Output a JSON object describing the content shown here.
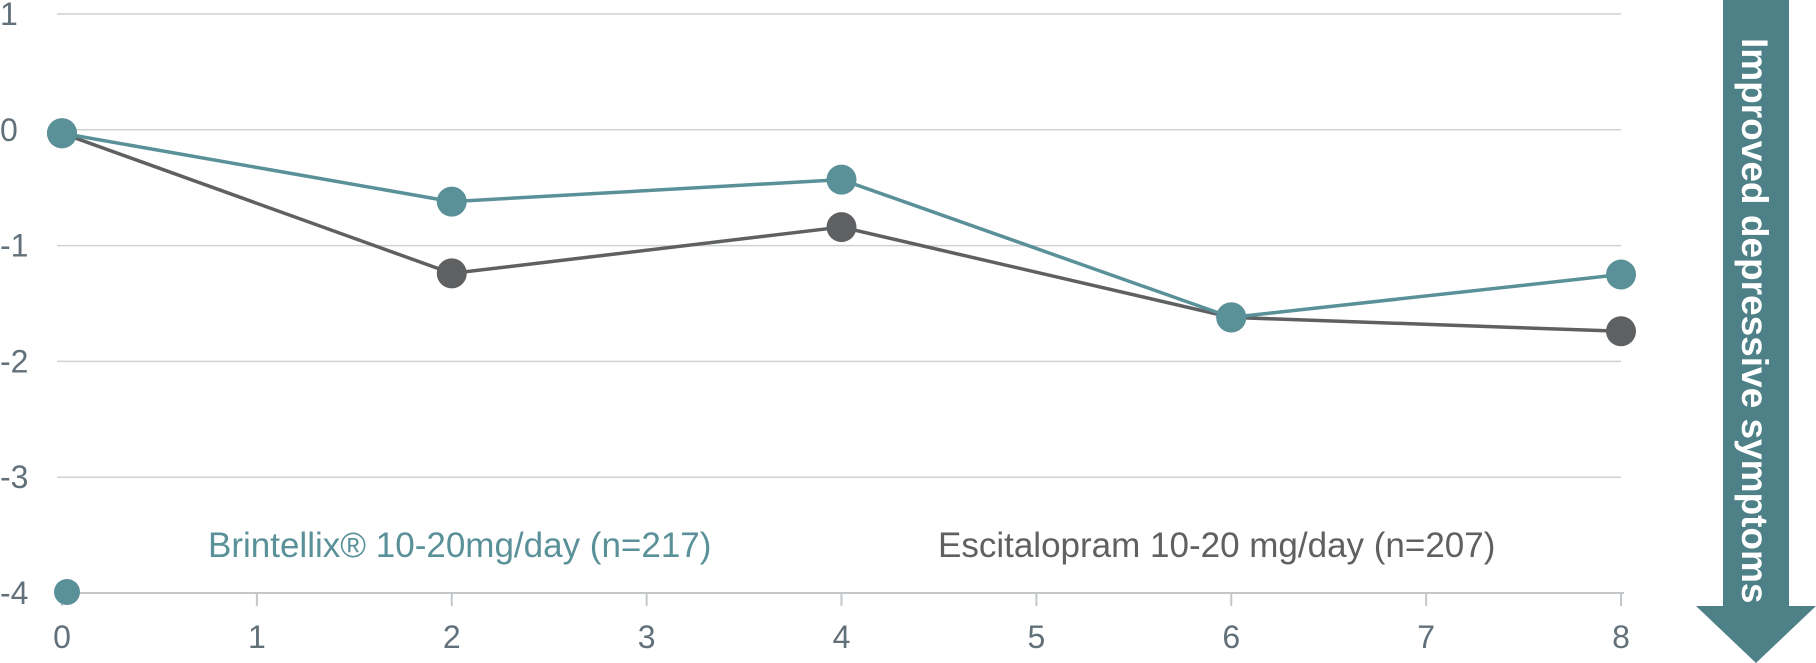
{
  "chart_data": {
    "type": "line",
    "title": "",
    "xlabel": "",
    "ylabel": "",
    "x": [
      0,
      2,
      4,
      6,
      8
    ],
    "xticks": [
      "0",
      "1",
      "2",
      "3",
      "4",
      "5",
      "6",
      "7",
      "8"
    ],
    "yticks": [
      "1",
      "0",
      "-1",
      "-2",
      "-3",
      "-4"
    ],
    "xlim": [
      0,
      8
    ],
    "ylim": [
      -4,
      1
    ],
    "grid": true,
    "legend_position": "bottom",
    "series": [
      {
        "name": "Brintellix® 10-20mg/day (n=217)",
        "color": "#5a9199",
        "values": [
          -0.03,
          -0.62,
          -0.43,
          -1.62,
          -1.25
        ]
      },
      {
        "name": "Escitalopram 10-20 mg/day (n=207)",
        "color": "#5f6062",
        "values": [
          -0.03,
          -1.24,
          -0.84,
          -1.62,
          -1.74
        ]
      }
    ],
    "annotation": {
      "text": "Improved depressive symptoms",
      "color": "#4e8087"
    }
  }
}
